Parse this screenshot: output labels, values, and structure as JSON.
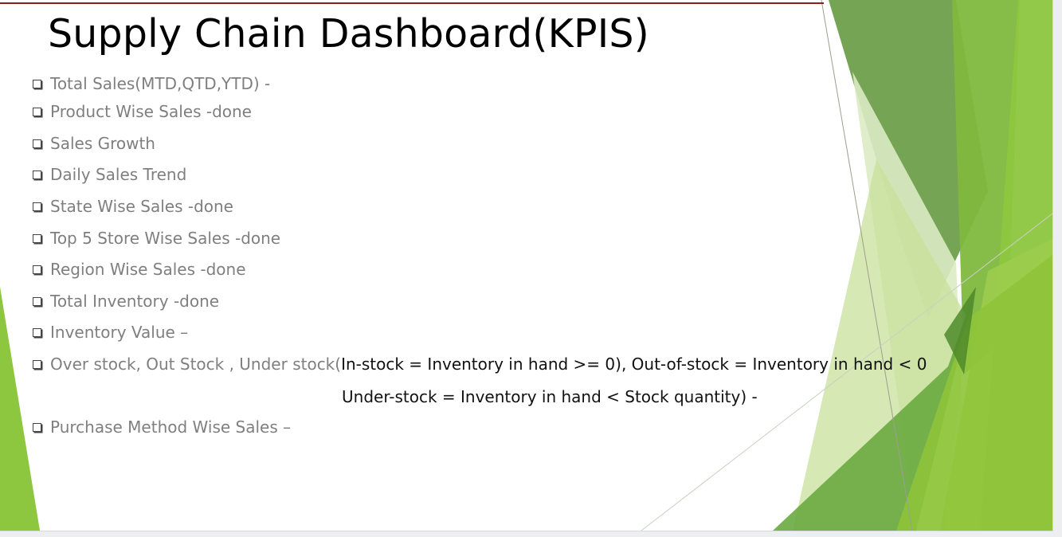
{
  "slide": {
    "title": "Supply Chain Dashboard(KPIS)",
    "items": [
      {
        "label": "Total Sales(MTD,QTD,YTD) -"
      },
      {
        "label": "Product Wise Sales -done"
      },
      {
        "label": "Sales Growth"
      },
      {
        "label": "Daily Sales Trend"
      },
      {
        "label": "State Wise Sales -done"
      },
      {
        "label": "Top 5 Store Wise Sales -done"
      },
      {
        "label": "Region Wise Sales -done"
      },
      {
        "label": "Total Inventory -done"
      },
      {
        "label": "Inventory Value –"
      },
      {
        "label": "Over stock, Out Stock , Under stock(",
        "detail": "In-stock = Inventory in hand >= 0), Out-of-stock = Inventory in hand < 0"
      },
      {
        "label": "Purchase Method Wise Sales –"
      }
    ],
    "continuation": "Under-stock = Inventory in hand < Stock quantity) -"
  },
  "colors": {
    "accent_rule": "#8b1f1f",
    "green_dark": "#5a8f3a",
    "green_mid": "#7ab648",
    "green_light": "#8dc63f",
    "green_pale": "#d7e8b8",
    "muted_text": "#7f7f7f"
  },
  "icons": {
    "bullet": "checkbox-bullet-icon"
  }
}
